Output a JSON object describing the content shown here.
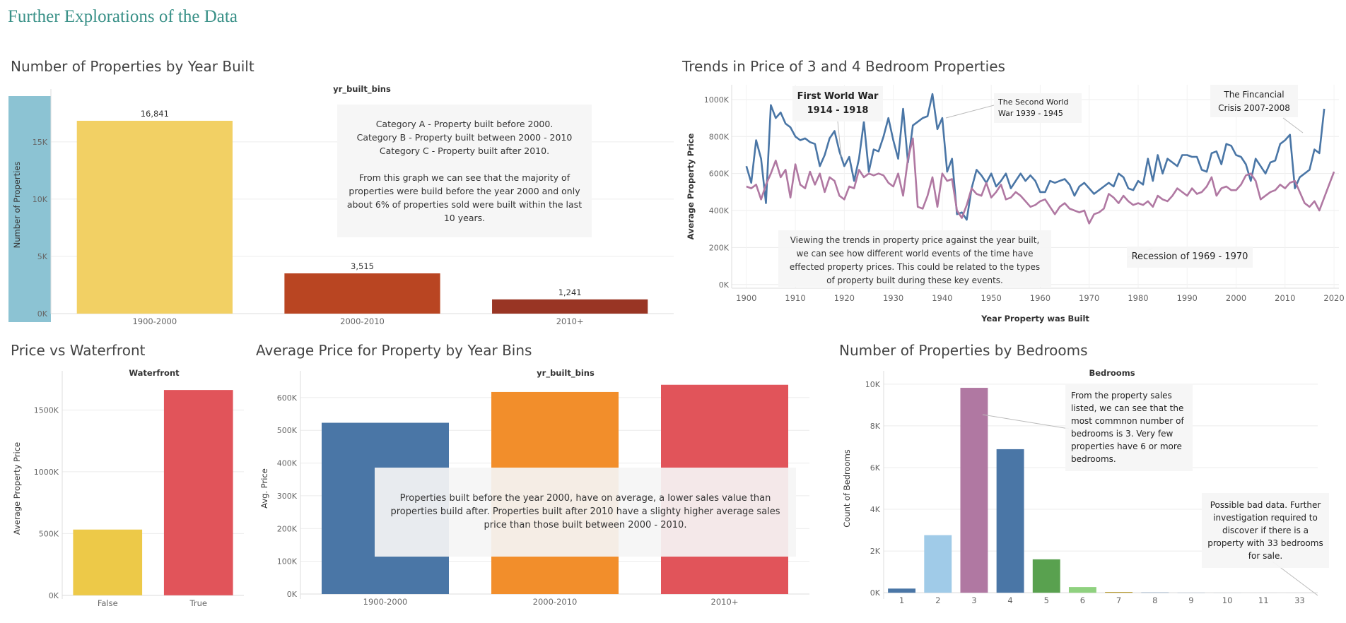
{
  "dashboard": {
    "title": "Further Explorations of the Data"
  },
  "colors": {
    "teal_title": "#3a9188",
    "light_blue": "#8cc3d3",
    "yellow": "#f2d064",
    "rust": "#b94522",
    "dark_rust": "#993524",
    "blue": "#4a76a6",
    "purple": "#b078a2",
    "orange": "#f28e2b",
    "red": "#e1545a",
    "gold": "#edc948",
    "sky": "#a0cbe8",
    "green": "#59a14f",
    "light_green": "#8fd17f",
    "tan": "#b6992d"
  },
  "notes": {
    "yr_built_bins": "Category A - Property built before 2000.\nCategory B - Property built between 2000 - 2010\nCategory C - Property built after 2010.\n\nFrom this graph we can see that the majority of properties were build before the year 2000 and only about 6% of properties sold were built within the last 10 years.",
    "trends": "Viewing the trends in property price against the year built, we can see how different world events of the time have effected property prices. This could be related to the types of property built during these key events.",
    "ww1": "First World War\n1914 - 1918",
    "ww2": "The Second World\nWar 1939 - 1945",
    "crisis": "The Fincancial\nCrisis 2007-2008",
    "recession": "Recession of 1969 - 1970",
    "avg_price_bins": "Properties built before the year 2000, have on average, a lower sales value than properties build after. Properties built after 2010 have a slighty higher average sales price than those built between 2000 - 2010.",
    "bedrooms": "From the property sales listed, we can see that the most commnon number of bedrooms is 3.  Very few properties have 6 or more bedrooms.",
    "bad_data": "Possible bad data. Further investigation required to discover if there is a property with 33 bedrooms for sale."
  },
  "chart_data": [
    {
      "id": "props_by_year",
      "type": "bar",
      "title": "Number of Properties by Year Built",
      "column_header": "yr_built_bins",
      "ylabel": "Number of Properties",
      "categories": [
        "1900-2000",
        "2000-2010",
        "2010+"
      ],
      "values": [
        16841,
        3515,
        1241
      ],
      "data_labels": [
        "16,841",
        "3,515",
        "1,241"
      ],
      "ylim": [
        0,
        19000
      ],
      "yticks": [
        0,
        5000,
        10000,
        15000
      ],
      "ytick_labels": [
        "0K",
        "5K",
        "10K",
        "15K"
      ]
    },
    {
      "id": "trends",
      "type": "line",
      "title": "Trends in Price of 3 and 4 Bedroom Properties",
      "xlabel": "Year Property was Built",
      "ylabel": "Average Property Price",
      "xlim": [
        1897,
        2021
      ],
      "ylim": [
        -20000,
        1080000
      ],
      "xticks": [
        1900,
        1910,
        1920,
        1930,
        1940,
        1950,
        1960,
        1970,
        1980,
        1990,
        2000,
        2010,
        2020
      ],
      "yticks": [
        0,
        200000,
        400000,
        600000,
        800000,
        1000000
      ],
      "ytick_labels": [
        "0K",
        "200K",
        "400K",
        "600K",
        "800K",
        "1000K"
      ],
      "x_start": 1900,
      "series": [
        {
          "color": "#4a76a6",
          "values": [
            640000,
            550000,
            780000,
            680000,
            440000,
            970000,
            900000,
            930000,
            870000,
            850000,
            800000,
            780000,
            790000,
            770000,
            760000,
            640000,
            700000,
            790000,
            830000,
            720000,
            640000,
            690000,
            560000,
            680000,
            880000,
            610000,
            730000,
            720000,
            800000,
            900000,
            780000,
            680000,
            950000,
            660000,
            860000,
            880000,
            900000,
            910000,
            1030000,
            840000,
            900000,
            610000,
            680000,
            380000,
            390000,
            350000,
            520000,
            620000,
            590000,
            550000,
            600000,
            530000,
            560000,
            600000,
            520000,
            560000,
            600000,
            560000,
            590000,
            560000,
            500000,
            500000,
            560000,
            550000,
            560000,
            570000,
            540000,
            480000,
            530000,
            550000,
            520000,
            490000,
            510000,
            530000,
            550000,
            530000,
            600000,
            580000,
            520000,
            510000,
            560000,
            540000,
            680000,
            560000,
            700000,
            600000,
            680000,
            660000,
            640000,
            700000,
            700000,
            690000,
            690000,
            620000,
            610000,
            710000,
            720000,
            650000,
            760000,
            750000,
            700000,
            690000,
            650000,
            560000,
            680000,
            640000,
            600000,
            660000,
            670000,
            760000,
            780000,
            810000,
            520000,
            580000,
            600000,
            620000,
            730000,
            710000,
            950000
          ]
        },
        {
          "color": "#b078a2",
          "values": [
            530000,
            520000,
            540000,
            460000,
            540000,
            600000,
            670000,
            580000,
            620000,
            470000,
            650000,
            540000,
            520000,
            610000,
            540000,
            600000,
            500000,
            580000,
            560000,
            480000,
            460000,
            530000,
            520000,
            620000,
            580000,
            600000,
            590000,
            600000,
            590000,
            550000,
            530000,
            600000,
            480000,
            680000,
            790000,
            420000,
            410000,
            480000,
            580000,
            420000,
            600000,
            560000,
            570000,
            400000,
            360000,
            430000,
            520000,
            490000,
            480000,
            550000,
            470000,
            500000,
            540000,
            460000,
            470000,
            500000,
            480000,
            450000,
            420000,
            430000,
            450000,
            460000,
            420000,
            380000,
            420000,
            440000,
            410000,
            400000,
            390000,
            400000,
            330000,
            380000,
            390000,
            410000,
            490000,
            470000,
            440000,
            480000,
            450000,
            430000,
            440000,
            430000,
            450000,
            420000,
            480000,
            460000,
            450000,
            480000,
            520000,
            500000,
            480000,
            520000,
            490000,
            500000,
            530000,
            580000,
            480000,
            520000,
            530000,
            510000,
            510000,
            540000,
            590000,
            600000,
            560000,
            460000,
            480000,
            500000,
            510000,
            540000,
            520000,
            550000,
            560000,
            500000,
            440000,
            420000,
            450000,
            400000,
            470000,
            540000,
            610000
          ]
        }
      ]
    },
    {
      "id": "waterfront",
      "type": "bar",
      "title": "Price vs Waterfront",
      "column_header": "Waterfront",
      "ylabel": "Average Property Price",
      "categories": [
        "False",
        "True"
      ],
      "values": [
        532000,
        1662000
      ],
      "ylim": [
        -30000,
        1760000
      ],
      "yticks": [
        0,
        500000,
        1000000,
        1500000
      ],
      "ytick_labels": [
        "0K",
        "500K",
        "1000K",
        "1500K"
      ]
    },
    {
      "id": "avg_price_bins",
      "type": "bar",
      "title": "Average Price for Property by Year Bins",
      "column_header": "yr_built_bins",
      "ylabel": "Avg. Price",
      "categories": [
        "1900-2000",
        "2000-2010",
        "2010+"
      ],
      "values": [
        523000,
        617000,
        639000
      ],
      "ylim": [
        -15000,
        660000
      ],
      "yticks": [
        0,
        100000,
        200000,
        300000,
        400000,
        500000,
        600000
      ],
      "ytick_labels": [
        "0K",
        "100K",
        "200K",
        "300K",
        "400K",
        "500K",
        "600K"
      ]
    },
    {
      "id": "bedrooms",
      "type": "bar",
      "title": "Number of Properties by Bedrooms",
      "column_header": "Bedrooms",
      "ylabel": "Count of Bedrooms",
      "categories": [
        "1",
        "2",
        "3",
        "4",
        "5",
        "6",
        "7",
        "8",
        "9",
        "10",
        "11",
        "33"
      ],
      "values": [
        199,
        2760,
        9824,
        6882,
        1601,
        272,
        38,
        13,
        6,
        3,
        1,
        1
      ],
      "ylim": [
        -300,
        10300
      ],
      "yticks": [
        0,
        2000,
        4000,
        6000,
        8000,
        10000
      ],
      "ytick_labels": [
        "0K",
        "2K",
        "4K",
        "6K",
        "8K",
        "10K"
      ]
    }
  ]
}
